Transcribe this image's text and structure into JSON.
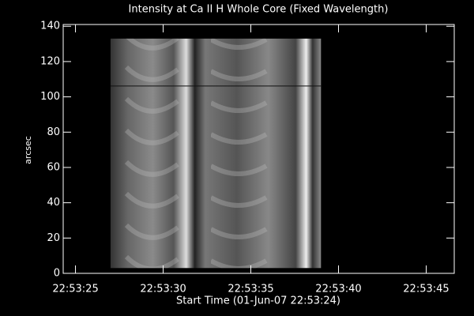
{
  "chart_data": {
    "type": "image",
    "title": "Intensity at Ca II H Whole Core (Fixed Wavelength)",
    "x_label": "Start Time (01-Jun-07 22:53:24)",
    "y_label": "arcsec",
    "xlim": [
      0.3,
      22.6
    ],
    "xticks": [
      {
        "value": 1,
        "label": "22:53:25"
      },
      {
        "value": 6,
        "label": "22:53:30"
      },
      {
        "value": 11,
        "label": "22:53:35"
      },
      {
        "value": 16,
        "label": "22:53:40"
      },
      {
        "value": 21,
        "label": "22:53:45"
      }
    ],
    "ylim": [
      0,
      141
    ],
    "yticks": [
      0,
      20,
      40,
      60,
      80,
      100,
      120,
      140
    ],
    "image": {
      "x": [
        3.0,
        15.0
      ],
      "y": [
        3,
        133
      ]
    }
  }
}
